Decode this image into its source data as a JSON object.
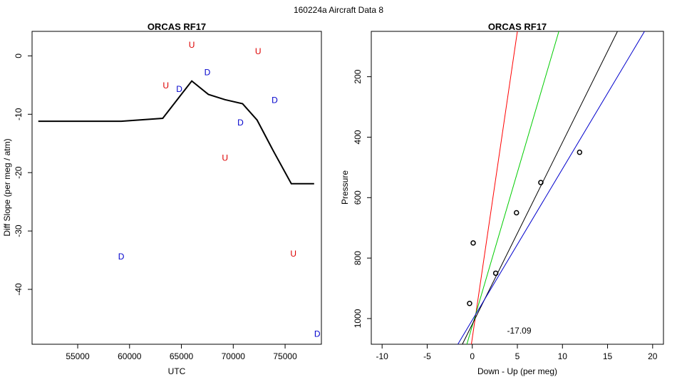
{
  "figure": {
    "title": "160224a   Aircraft Data 8"
  },
  "chart_data": [
    {
      "type": "scatter",
      "title": "ORCAS RF17",
      "xlabel": "UTC",
      "ylabel": "Diff Slope (per meg / atm)",
      "xlim": [
        50600,
        78500
      ],
      "ylim": [
        -49.4,
        4.2
      ],
      "xticks": [
        55000,
        60000,
        65000,
        70000,
        75000
      ],
      "yticks": [
        0,
        -10,
        -20,
        -30,
        -40
      ],
      "grid": false,
      "line_color": "#000000",
      "line": {
        "x": [
          51200,
          59200,
          63200,
          66000,
          67600,
          69200,
          70900,
          72300,
          73900,
          75600,
          77800
        ],
        "y": [
          -11.2,
          -11.2,
          -10.7,
          -4.3,
          -6.6,
          -7.5,
          -8.2,
          -11.0,
          -16.4,
          -21.9,
          -21.9
        ]
      },
      "markers": [
        {
          "x": 59200,
          "y": -34.4,
          "label": "D",
          "color": "#0000cc"
        },
        {
          "x": 63500,
          "y": -5.1,
          "label": "U",
          "color": "#dd0000"
        },
        {
          "x": 64800,
          "y": -5.7,
          "label": "D",
          "color": "#0000cc"
        },
        {
          "x": 66000,
          "y": 1.9,
          "label": "U",
          "color": "#dd0000"
        },
        {
          "x": 67500,
          "y": -2.8,
          "label": "D",
          "color": "#0000cc"
        },
        {
          "x": 69200,
          "y": -17.5,
          "label": "U",
          "color": "#dd0000"
        },
        {
          "x": 70700,
          "y": -11.4,
          "label": "D",
          "color": "#0000cc"
        },
        {
          "x": 72400,
          "y": 0.8,
          "label": "U",
          "color": "#dd0000"
        },
        {
          "x": 74000,
          "y": -7.6,
          "label": "D",
          "color": "#0000cc"
        },
        {
          "x": 75800,
          "y": -33.9,
          "label": "U",
          "color": "#dd0000"
        },
        {
          "x": 78100,
          "y": -47.6,
          "label": "D",
          "color": "#0000cc"
        }
      ]
    },
    {
      "type": "scatter",
      "title": "ORCAS RF17",
      "xlabel": "Down - Up (per meg)",
      "ylabel": "Pressure",
      "xlim": [
        -11.2,
        21.2
      ],
      "ylim": [
        1085,
        50
      ],
      "y_reversed": true,
      "xticks": [
        -10,
        -5,
        0,
        5,
        10,
        15,
        20
      ],
      "yticks": [
        200,
        400,
        600,
        800,
        1000
      ],
      "grid": false,
      "points": {
        "x": [
          -0.3,
          0.1,
          2.6,
          4.9,
          7.6,
          11.9
        ],
        "y": [
          950,
          750,
          850,
          650,
          550,
          450
        ]
      },
      "fit_lines": [
        {
          "color": "#ff0000",
          "x": [
            -0.1,
            5.0
          ],
          "y": [
            1085,
            50
          ]
        },
        {
          "color": "#00cc00",
          "x": [
            -0.6,
            9.6
          ],
          "y": [
            1085,
            50
          ]
        },
        {
          "color": "#000000",
          "x": [
            -1.1,
            16.1
          ],
          "y": [
            1085,
            50
          ]
        },
        {
          "color": "#0000cc",
          "x": [
            -1.6,
            19.1
          ],
          "y": [
            1085,
            50
          ]
        }
      ],
      "annotation": {
        "text": "-17.09",
        "x": 5.2,
        "y": 1040
      }
    }
  ]
}
